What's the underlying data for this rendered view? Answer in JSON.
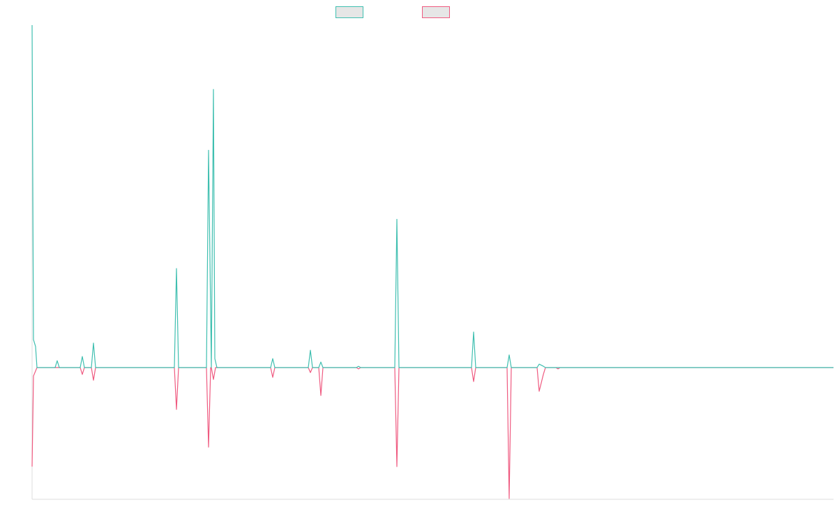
{
  "chart_data": {
    "type": "line",
    "xlim": [
      0,
      1149
    ],
    "ylim": [
      -50,
      130
    ],
    "series": [
      {
        "color": "#ef5a80",
        "x": [
          0,
          2,
          7,
          69,
          72,
          75,
          85,
          88,
          91,
          204,
          207,
          210,
          250,
          253,
          256,
          257,
          260,
          263,
          342,
          345,
          348,
          396,
          399,
          402,
          411,
          414,
          417,
          465,
          468,
          471,
          520,
          523,
          526,
          630,
          633,
          636,
          681,
          684,
          687,
          724,
          727,
          733,
          736,
          751,
          754,
          757,
          1149
        ],
        "values": [
          -37.6,
          -3.2,
          0,
          0,
          -2.6,
          0,
          0,
          -4.8,
          0,
          0,
          -15.9,
          0,
          0,
          -30.2,
          0,
          0,
          -4.5,
          0,
          0,
          -3.7,
          0,
          0,
          -1.9,
          0,
          0,
          -10.6,
          0,
          0,
          -0.5,
          0,
          0,
          -37.6,
          0,
          0,
          -5.3,
          0,
          0,
          -49.7,
          0,
          0,
          -9,
          -2.6,
          0,
          0,
          -0.5,
          0,
          0
        ]
      },
      {
        "color": "#3fbfb0",
        "x": [
          0,
          2,
          5,
          7,
          33,
          36,
          39,
          69,
          72,
          75,
          85,
          88,
          91,
          204,
          207,
          210,
          250,
          253,
          257,
          260,
          262,
          265,
          342,
          345,
          348,
          396,
          399,
          402,
          411,
          414,
          417,
          465,
          468,
          471,
          520,
          523,
          526,
          630,
          633,
          636,
          681,
          684,
          687,
          724,
          727,
          733,
          736,
          1149
        ],
        "values": [
          130,
          10.6,
          8,
          0,
          0,
          2.6,
          0,
          0,
          4.2,
          0,
          0,
          9.3,
          0,
          0,
          37.6,
          0,
          0,
          82.5,
          0,
          105.6,
          3.4,
          0,
          0,
          3.4,
          0,
          0,
          6.6,
          0,
          0,
          2.1,
          0,
          0,
          0.5,
          0,
          0,
          56.3,
          0,
          0,
          13.5,
          0,
          0,
          4.8,
          0,
          0,
          1.3,
          0.5,
          0,
          0
        ]
      }
    ]
  }
}
